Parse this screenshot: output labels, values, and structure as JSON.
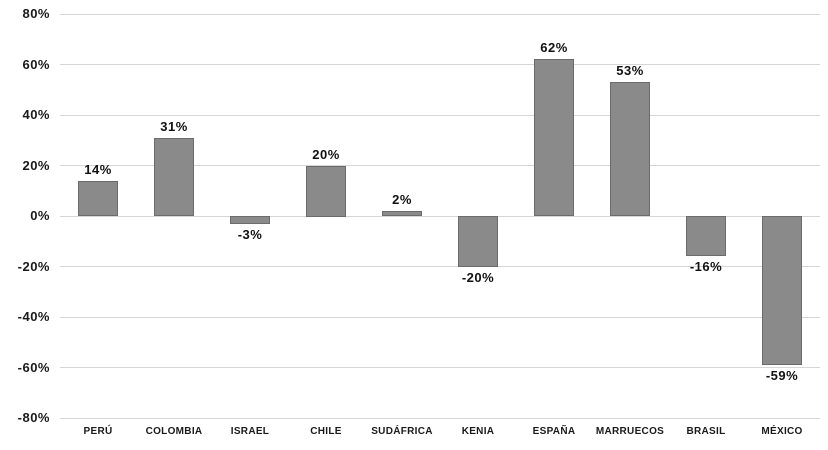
{
  "chart_data": {
    "type": "bar",
    "title": "",
    "xlabel": "",
    "ylabel": "",
    "categories": [
      "PERÚ",
      "COLOMBIA",
      "ISRAEL",
      "CHILE",
      "SUDÁFRICA",
      "KENIA",
      "ESPAÑA",
      "MARRUECOS",
      "BRASIL",
      "MÉXICO"
    ],
    "values": [
      14,
      31,
      -3,
      20,
      2,
      -20,
      62,
      53,
      -16,
      -59
    ],
    "value_labels": [
      "14%",
      "31%",
      "-3%",
      "20%",
      "2%",
      "-20%",
      "62%",
      "53%",
      "-16%",
      "-59%"
    ],
    "ylim": [
      -80,
      80
    ],
    "ytick_step": 20,
    "ytick_labels": [
      "80%",
      "60%",
      "40%",
      "20%",
      "0%",
      "-20%",
      "-40%",
      "-60%",
      "-80%"
    ],
    "grid": true,
    "legend": "none",
    "bar_fill_color": "#8a8a8a",
    "bar_border_color": "#6b6b6b",
    "gridline_color": "#d6d6d6"
  }
}
